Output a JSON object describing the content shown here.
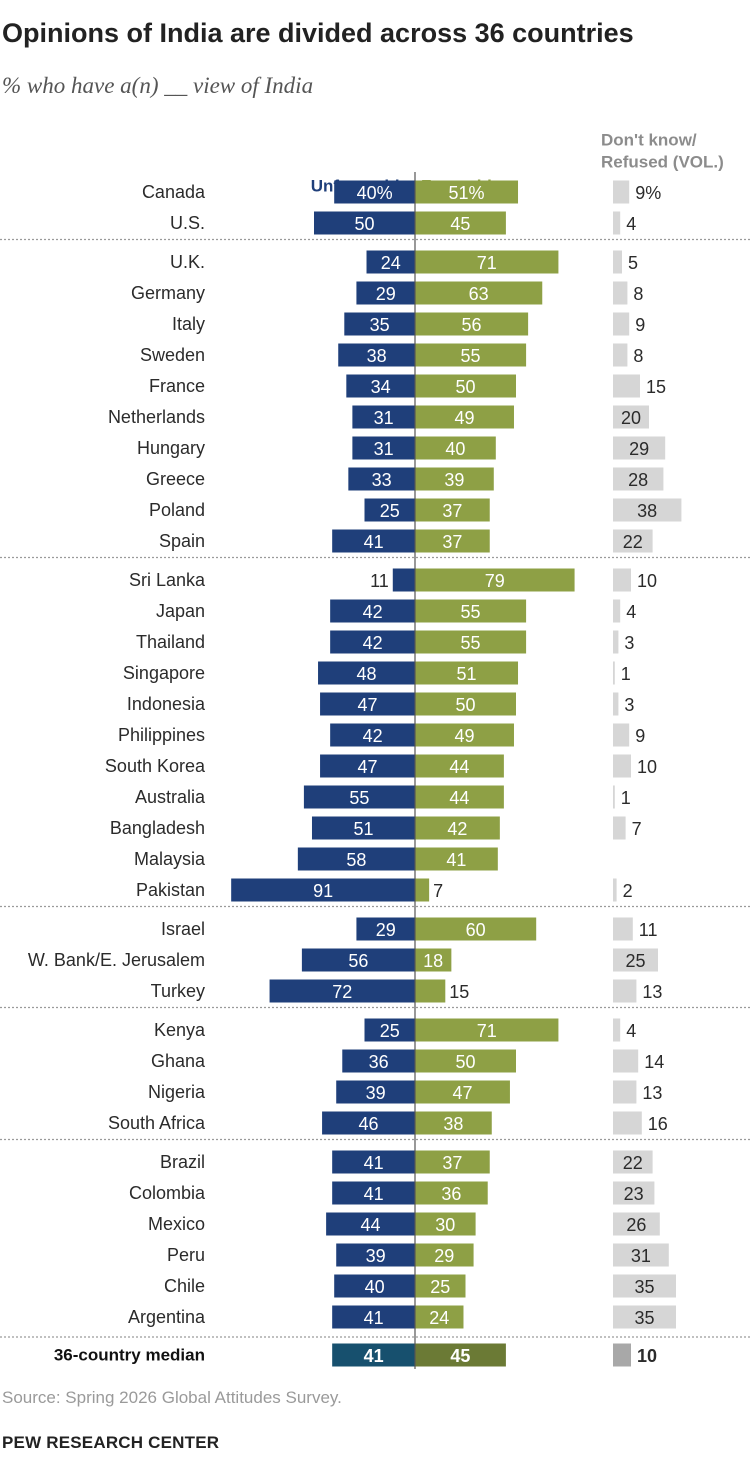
{
  "title": "Opinions of India are divided across 36 countries",
  "subtitle": "% who have a(n) __ view of India",
  "source": "Source: Spring 2026 Global Attitudes Survey.",
  "brand": "PEW RESEARCH CENTER",
  "chart_data": {
    "type": "bar",
    "orientation": "diverging-horizontal",
    "series": [
      {
        "name": "Unfavorable",
        "color": "#1f3f7a"
      },
      {
        "name": "Favorable",
        "color": "#8ea045"
      },
      {
        "name": "Don't know/ Refused (VOL.)",
        "color": "#d6d6d6"
      }
    ],
    "median_colors": {
      "unfavorable": "#17506e",
      "favorable": "#6b7a35",
      "dk": "#a8a8a8"
    },
    "groups": [
      [
        {
          "country": "Canada",
          "unfav": 40,
          "fav": 51,
          "dk": 9,
          "unfav_label": "40%",
          "fav_label": "51%",
          "dk_label": "9%"
        },
        {
          "country": "U.S.",
          "unfav": 50,
          "fav": 45,
          "dk": 4,
          "unfav_label": "50",
          "fav_label": "45",
          "dk_label": "4"
        }
      ],
      [
        {
          "country": "U.K.",
          "unfav": 24,
          "fav": 71,
          "dk": 5,
          "unfav_label": "24",
          "fav_label": "71",
          "dk_label": "5"
        },
        {
          "country": "Germany",
          "unfav": 29,
          "fav": 63,
          "dk": 8,
          "unfav_label": "29",
          "fav_label": "63",
          "dk_label": "8"
        },
        {
          "country": "Italy",
          "unfav": 35,
          "fav": 56,
          "dk": 9,
          "unfav_label": "35",
          "fav_label": "56",
          "dk_label": "9"
        },
        {
          "country": "Sweden",
          "unfav": 38,
          "fav": 55,
          "dk": 8,
          "unfav_label": "38",
          "fav_label": "55",
          "dk_label": "8"
        },
        {
          "country": "France",
          "unfav": 34,
          "fav": 50,
          "dk": 15,
          "unfav_label": "34",
          "fav_label": "50",
          "dk_label": "15"
        },
        {
          "country": "Netherlands",
          "unfav": 31,
          "fav": 49,
          "dk": 20,
          "unfav_label": "31",
          "fav_label": "49",
          "dk_label": "20"
        },
        {
          "country": "Hungary",
          "unfav": 31,
          "fav": 40,
          "dk": 29,
          "unfav_label": "31",
          "fav_label": "40",
          "dk_label": "29"
        },
        {
          "country": "Greece",
          "unfav": 33,
          "fav": 39,
          "dk": 28,
          "unfav_label": "33",
          "fav_label": "39",
          "dk_label": "28"
        },
        {
          "country": "Poland",
          "unfav": 25,
          "fav": 37,
          "dk": 38,
          "unfav_label": "25",
          "fav_label": "37",
          "dk_label": "38"
        },
        {
          "country": "Spain",
          "unfav": 41,
          "fav": 37,
          "dk": 22,
          "unfav_label": "41",
          "fav_label": "37",
          "dk_label": "22"
        }
      ],
      [
        {
          "country": "Sri Lanka",
          "unfav": 11,
          "fav": 79,
          "dk": 10,
          "unfav_label": "11",
          "fav_label": "79",
          "dk_label": "10"
        },
        {
          "country": "Japan",
          "unfav": 42,
          "fav": 55,
          "dk": 4,
          "unfav_label": "42",
          "fav_label": "55",
          "dk_label": "4"
        },
        {
          "country": "Thailand",
          "unfav": 42,
          "fav": 55,
          "dk": 3,
          "unfav_label": "42",
          "fav_label": "55",
          "dk_label": "3"
        },
        {
          "country": "Singapore",
          "unfav": 48,
          "fav": 51,
          "dk": 1,
          "unfav_label": "48",
          "fav_label": "51",
          "dk_label": "1"
        },
        {
          "country": "Indonesia",
          "unfav": 47,
          "fav": 50,
          "dk": 3,
          "unfav_label": "47",
          "fav_label": "50",
          "dk_label": "3"
        },
        {
          "country": "Philippines",
          "unfav": 42,
          "fav": 49,
          "dk": 9,
          "unfav_label": "42",
          "fav_label": "49",
          "dk_label": "9"
        },
        {
          "country": "South Korea",
          "unfav": 47,
          "fav": 44,
          "dk": 10,
          "unfav_label": "47",
          "fav_label": "44",
          "dk_label": "10"
        },
        {
          "country": "Australia",
          "unfav": 55,
          "fav": 44,
          "dk": 1,
          "unfav_label": "55",
          "fav_label": "44",
          "dk_label": "1"
        },
        {
          "country": "Bangladesh",
          "unfav": 51,
          "fav": 42,
          "dk": 7,
          "unfav_label": "51",
          "fav_label": "42",
          "dk_label": "7"
        },
        {
          "country": "Malaysia",
          "unfav": 58,
          "fav": 41,
          "dk": null,
          "unfav_label": "58",
          "fav_label": "41",
          "dk_label": ""
        },
        {
          "country": "Pakistan",
          "unfav": 91,
          "fav": 7,
          "dk": 2,
          "unfav_label": "91",
          "fav_label": "7",
          "dk_label": "2"
        }
      ],
      [
        {
          "country": "Israel",
          "unfav": 29,
          "fav": 60,
          "dk": 11,
          "unfav_label": "29",
          "fav_label": "60",
          "dk_label": "11"
        },
        {
          "country": "W. Bank/E. Jerusalem",
          "unfav": 56,
          "fav": 18,
          "dk": 25,
          "unfav_label": "56",
          "fav_label": "18",
          "dk_label": "25"
        },
        {
          "country": "Turkey",
          "unfav": 72,
          "fav": 15,
          "dk": 13,
          "unfav_label": "72",
          "fav_label": "15",
          "dk_label": "13"
        }
      ],
      [
        {
          "country": "Kenya",
          "unfav": 25,
          "fav": 71,
          "dk": 4,
          "unfav_label": "25",
          "fav_label": "71",
          "dk_label": "4"
        },
        {
          "country": "Ghana",
          "unfav": 36,
          "fav": 50,
          "dk": 14,
          "unfav_label": "36",
          "fav_label": "50",
          "dk_label": "14"
        },
        {
          "country": "Nigeria",
          "unfav": 39,
          "fav": 47,
          "dk": 13,
          "unfav_label": "39",
          "fav_label": "47",
          "dk_label": "13"
        },
        {
          "country": "South Africa",
          "unfav": 46,
          "fav": 38,
          "dk": 16,
          "unfav_label": "46",
          "fav_label": "38",
          "dk_label": "16"
        }
      ],
      [
        {
          "country": "Brazil",
          "unfav": 41,
          "fav": 37,
          "dk": 22,
          "unfav_label": "41",
          "fav_label": "37",
          "dk_label": "22"
        },
        {
          "country": "Colombia",
          "unfav": 41,
          "fav": 36,
          "dk": 23,
          "unfav_label": "41",
          "fav_label": "36",
          "dk_label": "23"
        },
        {
          "country": "Mexico",
          "unfav": 44,
          "fav": 30,
          "dk": 26,
          "unfav_label": "44",
          "fav_label": "30",
          "dk_label": "26"
        },
        {
          "country": "Peru",
          "unfav": 39,
          "fav": 29,
          "dk": 31,
          "unfav_label": "39",
          "fav_label": "29",
          "dk_label": "31"
        },
        {
          "country": "Chile",
          "unfav": 40,
          "fav": 25,
          "dk": 35,
          "unfav_label": "40",
          "fav_label": "25",
          "dk_label": "35"
        },
        {
          "country": "Argentina",
          "unfav": 41,
          "fav": 24,
          "dk": 35,
          "unfav_label": "41",
          "fav_label": "24",
          "dk_label": "35"
        }
      ]
    ],
    "median": {
      "country": "36-country median",
      "unfav": 41,
      "fav": 45,
      "dk": 10,
      "unfav_label": "41",
      "fav_label": "45",
      "dk_label": "10"
    },
    "header_unfav": "Unfavorable",
    "header_fav": "Favorable",
    "header_dk_line1": "Don't know/",
    "header_dk_line2": "Refused (VOL.)"
  }
}
